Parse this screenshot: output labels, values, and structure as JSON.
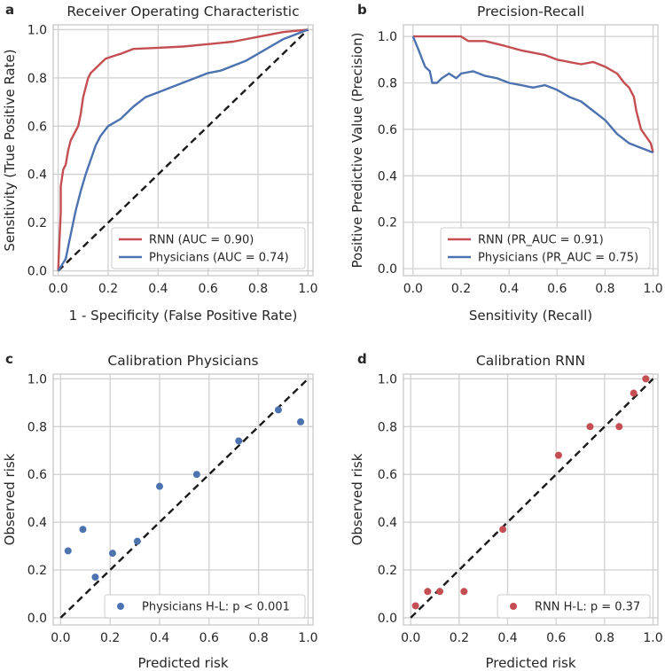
{
  "chart_data": [
    {
      "type": "line",
      "panel": "a",
      "title": "Receiver Operating Characteristic",
      "xlabel": "1 - Specificity (False Positive Rate)",
      "ylabel": "Sensitivity (True Positive Rate)",
      "xlim": [
        -0.02,
        1.02
      ],
      "ylim": [
        -0.02,
        1.02
      ],
      "xticks": [
        "0.0",
        "0.2",
        "0.4",
        "0.6",
        "0.8",
        "1.0"
      ],
      "yticks": [
        "0.0",
        "0.2",
        "0.4",
        "0.6",
        "0.8",
        "1.0"
      ],
      "legend_position": "lower-right",
      "diagonal": [
        [
          0,
          0
        ],
        [
          1,
          1
        ]
      ],
      "series": [
        {
          "name": "RNN (AUC = 0.90)",
          "color": "#c44e52",
          "points": [
            [
              0,
              0
            ],
            [
              0.005,
              0.12
            ],
            [
              0.01,
              0.24
            ],
            [
              0.01,
              0.35
            ],
            [
              0.02,
              0.42
            ],
            [
              0.03,
              0.44
            ],
            [
              0.04,
              0.5
            ],
            [
              0.05,
              0.54
            ],
            [
              0.06,
              0.56
            ],
            [
              0.07,
              0.58
            ],
            [
              0.08,
              0.6
            ],
            [
              0.09,
              0.65
            ],
            [
              0.1,
              0.72
            ],
            [
              0.11,
              0.76
            ],
            [
              0.12,
              0.8
            ],
            [
              0.13,
              0.82
            ],
            [
              0.15,
              0.84
            ],
            [
              0.17,
              0.86
            ],
            [
              0.19,
              0.88
            ],
            [
              0.22,
              0.89
            ],
            [
              0.25,
              0.9
            ],
            [
              0.3,
              0.92
            ],
            [
              0.4,
              0.925
            ],
            [
              0.5,
              0.93
            ],
            [
              0.6,
              0.94
            ],
            [
              0.7,
              0.95
            ],
            [
              0.8,
              0.97
            ],
            [
              0.9,
              0.99
            ],
            [
              1.0,
              1.0
            ]
          ]
        },
        {
          "name": "Physicians (AUC = 0.74)",
          "color": "#4c72b0",
          "points": [
            [
              0,
              0
            ],
            [
              0.03,
              0.05
            ],
            [
              0.05,
              0.15
            ],
            [
              0.07,
              0.25
            ],
            [
              0.09,
              0.33
            ],
            [
              0.11,
              0.4
            ],
            [
              0.13,
              0.46
            ],
            [
              0.15,
              0.52
            ],
            [
              0.17,
              0.56
            ],
            [
              0.2,
              0.6
            ],
            [
              0.25,
              0.63
            ],
            [
              0.3,
              0.68
            ],
            [
              0.35,
              0.72
            ],
            [
              0.4,
              0.74
            ],
            [
              0.45,
              0.76
            ],
            [
              0.5,
              0.78
            ],
            [
              0.55,
              0.8
            ],
            [
              0.6,
              0.82
            ],
            [
              0.65,
              0.83
            ],
            [
              0.7,
              0.85
            ],
            [
              0.75,
              0.87
            ],
            [
              0.8,
              0.9
            ],
            [
              0.85,
              0.93
            ],
            [
              0.9,
              0.96
            ],
            [
              0.95,
              0.98
            ],
            [
              1.0,
              1.0
            ]
          ]
        }
      ]
    },
    {
      "type": "line",
      "panel": "b",
      "title": "Precision-Recall",
      "xlabel": "Sensitivity (Recall)",
      "ylabel": "Positive Predictive Value (Precision)",
      "xlim": [
        -0.04,
        1.02
      ],
      "ylim": [
        -0.03,
        1.05
      ],
      "xticks": [
        "0.0",
        "0.2",
        "0.4",
        "0.6",
        "0.8",
        "1.0"
      ],
      "yticks": [
        "0.0",
        "0.2",
        "0.4",
        "0.6",
        "0.8",
        "1.0"
      ],
      "legend_position": "lower-right",
      "series": [
        {
          "name": "RNN (PR_AUC = 0.91)",
          "color": "#c44e52",
          "points": [
            [
              0,
              1.0
            ],
            [
              0.1,
              1.0
            ],
            [
              0.2,
              1.0
            ],
            [
              0.23,
              0.98
            ],
            [
              0.3,
              0.98
            ],
            [
              0.38,
              0.96
            ],
            [
              0.45,
              0.94
            ],
            [
              0.5,
              0.93
            ],
            [
              0.55,
              0.92
            ],
            [
              0.6,
              0.9
            ],
            [
              0.65,
              0.89
            ],
            [
              0.7,
              0.88
            ],
            [
              0.75,
              0.89
            ],
            [
              0.8,
              0.87
            ],
            [
              0.85,
              0.84
            ],
            [
              0.88,
              0.8
            ],
            [
              0.9,
              0.78
            ],
            [
              0.92,
              0.74
            ],
            [
              0.93,
              0.68
            ],
            [
              0.95,
              0.6
            ],
            [
              0.97,
              0.57
            ],
            [
              0.99,
              0.54
            ],
            [
              1.0,
              0.5
            ]
          ]
        },
        {
          "name": "Physicians (PR_AUC = 0.75)",
          "color": "#4c72b0",
          "points": [
            [
              0,
              1.0
            ],
            [
              0.02,
              0.95
            ],
            [
              0.05,
              0.87
            ],
            [
              0.07,
              0.85
            ],
            [
              0.08,
              0.8
            ],
            [
              0.1,
              0.8
            ],
            [
              0.12,
              0.82
            ],
            [
              0.15,
              0.84
            ],
            [
              0.18,
              0.82
            ],
            [
              0.2,
              0.84
            ],
            [
              0.25,
              0.85
            ],
            [
              0.3,
              0.83
            ],
            [
              0.35,
              0.82
            ],
            [
              0.4,
              0.8
            ],
            [
              0.45,
              0.79
            ],
            [
              0.5,
              0.78
            ],
            [
              0.55,
              0.79
            ],
            [
              0.6,
              0.77
            ],
            [
              0.65,
              0.74
            ],
            [
              0.7,
              0.72
            ],
            [
              0.75,
              0.68
            ],
            [
              0.8,
              0.64
            ],
            [
              0.85,
              0.58
            ],
            [
              0.9,
              0.54
            ],
            [
              0.95,
              0.52
            ],
            [
              1.0,
              0.5
            ]
          ]
        }
      ]
    },
    {
      "type": "scatter",
      "panel": "c",
      "title": "Calibration Physicians",
      "xlabel": "Predicted risk",
      "ylabel": "Observed risk",
      "xlim": [
        -0.03,
        1.02
      ],
      "ylim": [
        -0.03,
        1.02
      ],
      "xticks": [
        "0.0",
        "0.2",
        "0.4",
        "0.6",
        "0.8",
        "1.0"
      ],
      "yticks": [
        "0.0",
        "0.2",
        "0.4",
        "0.6",
        "0.8",
        "1.0"
      ],
      "legend_position": "lower-right",
      "diagonal": [
        [
          0,
          0
        ],
        [
          1,
          1
        ]
      ],
      "series": [
        {
          "name": "Physicians H-L: p < 0.001",
          "color": "#4c72b0",
          "points": [
            [
              0.03,
              0.28
            ],
            [
              0.09,
              0.37
            ],
            [
              0.14,
              0.17
            ],
            [
              0.21,
              0.27
            ],
            [
              0.31,
              0.32
            ],
            [
              0.4,
              0.55
            ],
            [
              0.55,
              0.6
            ],
            [
              0.72,
              0.74
            ],
            [
              0.88,
              0.87
            ],
            [
              0.97,
              0.82
            ]
          ]
        }
      ]
    },
    {
      "type": "scatter",
      "panel": "d",
      "title": "Calibration RNN",
      "xlabel": "Predicted risk",
      "ylabel": "Observed risk",
      "xlim": [
        -0.03,
        1.02
      ],
      "ylim": [
        -0.03,
        1.02
      ],
      "xticks": [
        "0.0",
        "0.2",
        "0.4",
        "0.6",
        "0.8",
        "1.0"
      ],
      "yticks": [
        "0.0",
        "0.2",
        "0.4",
        "0.6",
        "0.8",
        "1.0"
      ],
      "legend_position": "lower-right",
      "diagonal": [
        [
          0,
          0
        ],
        [
          1,
          1
        ]
      ],
      "series": [
        {
          "name": "RNN H-L: p = 0.37",
          "color": "#c44e52",
          "points": [
            [
              0.02,
              0.05
            ],
            [
              0.07,
              0.11
            ],
            [
              0.12,
              0.11
            ],
            [
              0.22,
              0.11
            ],
            [
              0.38,
              0.37
            ],
            [
              0.61,
              0.68
            ],
            [
              0.74,
              0.8
            ],
            [
              0.86,
              0.8
            ],
            [
              0.92,
              0.94
            ],
            [
              0.97,
              1.0
            ]
          ]
        }
      ]
    }
  ]
}
